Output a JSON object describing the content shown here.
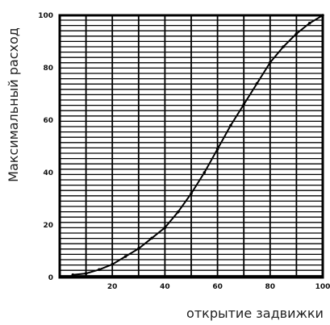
{
  "chart_data": {
    "type": "line",
    "xlabel": "открытие задвижки",
    "ylabel": "Максимальный расход",
    "xlim": [
      0,
      100
    ],
    "ylim": [
      0,
      100
    ],
    "x_ticks": [
      {
        "value": 20,
        "label": "20"
      },
      {
        "value": 40,
        "label": "40"
      },
      {
        "value": 60,
        "label": "60"
      },
      {
        "value": 80,
        "label": "80"
      },
      {
        "value": 100,
        "label": "100"
      }
    ],
    "y_ticks": [
      {
        "value": 0,
        "label": "0"
      },
      {
        "value": 20,
        "label": "20"
      },
      {
        "value": 40,
        "label": "40"
      },
      {
        "value": 60,
        "label": "60"
      },
      {
        "value": 80,
        "label": "80"
      },
      {
        "value": 100,
        "label": "100"
      }
    ],
    "grid": true,
    "series": [
      {
        "x": [
          5,
          10,
          15,
          20,
          25,
          30,
          35,
          40,
          45,
          50,
          55,
          60,
          65,
          70,
          75,
          80,
          85,
          90,
          95,
          100
        ],
        "y": [
          1,
          1.5,
          3,
          5,
          8,
          11,
          15,
          19,
          25,
          32,
          40,
          49,
          58,
          66,
          74,
          82,
          88,
          93,
          97,
          100
        ]
      }
    ],
    "colors": {
      "frame": "#000000",
      "grid": "#000000",
      "line": "#000000",
      "background": "#ffffff"
    }
  }
}
